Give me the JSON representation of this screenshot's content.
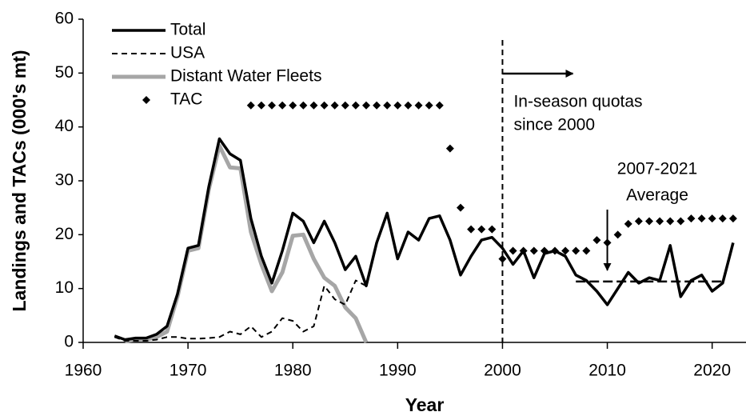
{
  "chart_data": {
    "type": "line",
    "x_label": "Year",
    "y_label": "Landings and TACs (000's mt)",
    "xlim": [
      1960,
      2023
    ],
    "xticks": [
      1960,
      1970,
      1980,
      1990,
      2000,
      2010,
      2020
    ],
    "ylim": [
      0,
      60
    ],
    "yticks": [
      0,
      10,
      20,
      30,
      40,
      50,
      60
    ],
    "legend": "top-left",
    "series": [
      {
        "name": "Total",
        "color": "#000000",
        "style": "solid",
        "x": [
          1963,
          1964,
          1965,
          1966,
          1967,
          1968,
          1969,
          1970,
          1971,
          1972,
          1973,
          1974,
          1975,
          1976,
          1977,
          1978,
          1979,
          1980,
          1981,
          1982,
          1983,
          1984,
          1985,
          1986,
          1987,
          1988,
          1989,
          1990,
          1991,
          1992,
          1993,
          1994,
          1995,
          1996,
          1997,
          1998,
          1999,
          2000,
          2001,
          2002,
          2003,
          2004,
          2005,
          2006,
          2007,
          2008,
          2009,
          2010,
          2011,
          2012,
          2013,
          2014,
          2015,
          2016,
          2017,
          2018,
          2019,
          2020,
          2021,
          2022
        ],
        "values": [
          1.2,
          0.5,
          0.8,
          0.8,
          1.5,
          3,
          9,
          17.5,
          18,
          29,
          37.8,
          35,
          33.8,
          23,
          16,
          11,
          17,
          24,
          22.5,
          18.5,
          22.5,
          18.5,
          13.5,
          16,
          10.5,
          18.5,
          24,
          15.5,
          20.5,
          19,
          23,
          23.5,
          19,
          12.5,
          16,
          19,
          19.5,
          17.5,
          14.5,
          17,
          12,
          16.5,
          17,
          16,
          12.5,
          11.5,
          9.5,
          7,
          10,
          13,
          11,
          12,
          11.5,
          18,
          8.5,
          11.5,
          12.5,
          9.5,
          11,
          18.5
        ]
      },
      {
        "name": "USA",
        "color": "#000000",
        "style": "dashed",
        "x": [
          1963,
          1964,
          1965,
          1966,
          1967,
          1968,
          1969,
          1970,
          1971,
          1972,
          1973,
          1974,
          1975,
          1976,
          1977,
          1978,
          1979,
          1980,
          1981,
          1982,
          1983,
          1984,
          1985,
          1986,
          1987
        ],
        "values": [
          1,
          0.3,
          0.3,
          0.3,
          0.5,
          1,
          1,
          0.7,
          0.7,
          0.8,
          1,
          2,
          1.5,
          3,
          1,
          2,
          4.5,
          4,
          2,
          3,
          10.5,
          8,
          7,
          11.5,
          10.5
        ]
      },
      {
        "name": "Distant Water Fleets",
        "color": "#a6a6a6",
        "style": "thick",
        "x": [
          1964,
          1965,
          1966,
          1967,
          1968,
          1969,
          1970,
          1971,
          1972,
          1973,
          1974,
          1975,
          1976,
          1977,
          1978,
          1979,
          1980,
          1981,
          1982,
          1983,
          1984,
          1985,
          1986,
          1987
        ],
        "values": [
          0.2,
          0.5,
          0.5,
          1,
          2,
          8.5,
          17,
          17.5,
          28.5,
          36.5,
          32.5,
          32.3,
          20.5,
          14.5,
          9.5,
          13,
          19.8,
          20,
          15.5,
          12,
          10.5,
          6.5,
          4.5,
          0
        ]
      },
      {
        "name": "TAC",
        "color": "#000000",
        "style": "diamond",
        "x": [
          1976,
          1977,
          1978,
          1979,
          1980,
          1981,
          1982,
          1983,
          1984,
          1985,
          1986,
          1987,
          1988,
          1989,
          1990,
          1991,
          1992,
          1993,
          1994,
          1995,
          1996,
          1997,
          1998,
          1999,
          2000,
          2001,
          2002,
          2003,
          2004,
          2005,
          2006,
          2007,
          2008,
          2009,
          2010,
          2011,
          2012,
          2013,
          2014,
          2015,
          2016,
          2017,
          2018,
          2019,
          2020,
          2021,
          2022
        ],
        "values": [
          44,
          44,
          44,
          44,
          44,
          44,
          44,
          44,
          44,
          44,
          44,
          44,
          44,
          44,
          44,
          44,
          44,
          44,
          44,
          36,
          25,
          21,
          21,
          21,
          15.5,
          17,
          17,
          17,
          17,
          17,
          17,
          17,
          17,
          19,
          18.5,
          20,
          22,
          22.5,
          22.5,
          22.5,
          22.5,
          22.5,
          23,
          23,
          23,
          23,
          23
        ]
      }
    ],
    "vline": {
      "x": 2000,
      "label": [
        "In-season quotas",
        "since 2000"
      ]
    },
    "average": {
      "x": [
        2007,
        2021
      ],
      "value": 11.3,
      "label": [
        "2007-2021",
        "Average"
      ]
    }
  }
}
